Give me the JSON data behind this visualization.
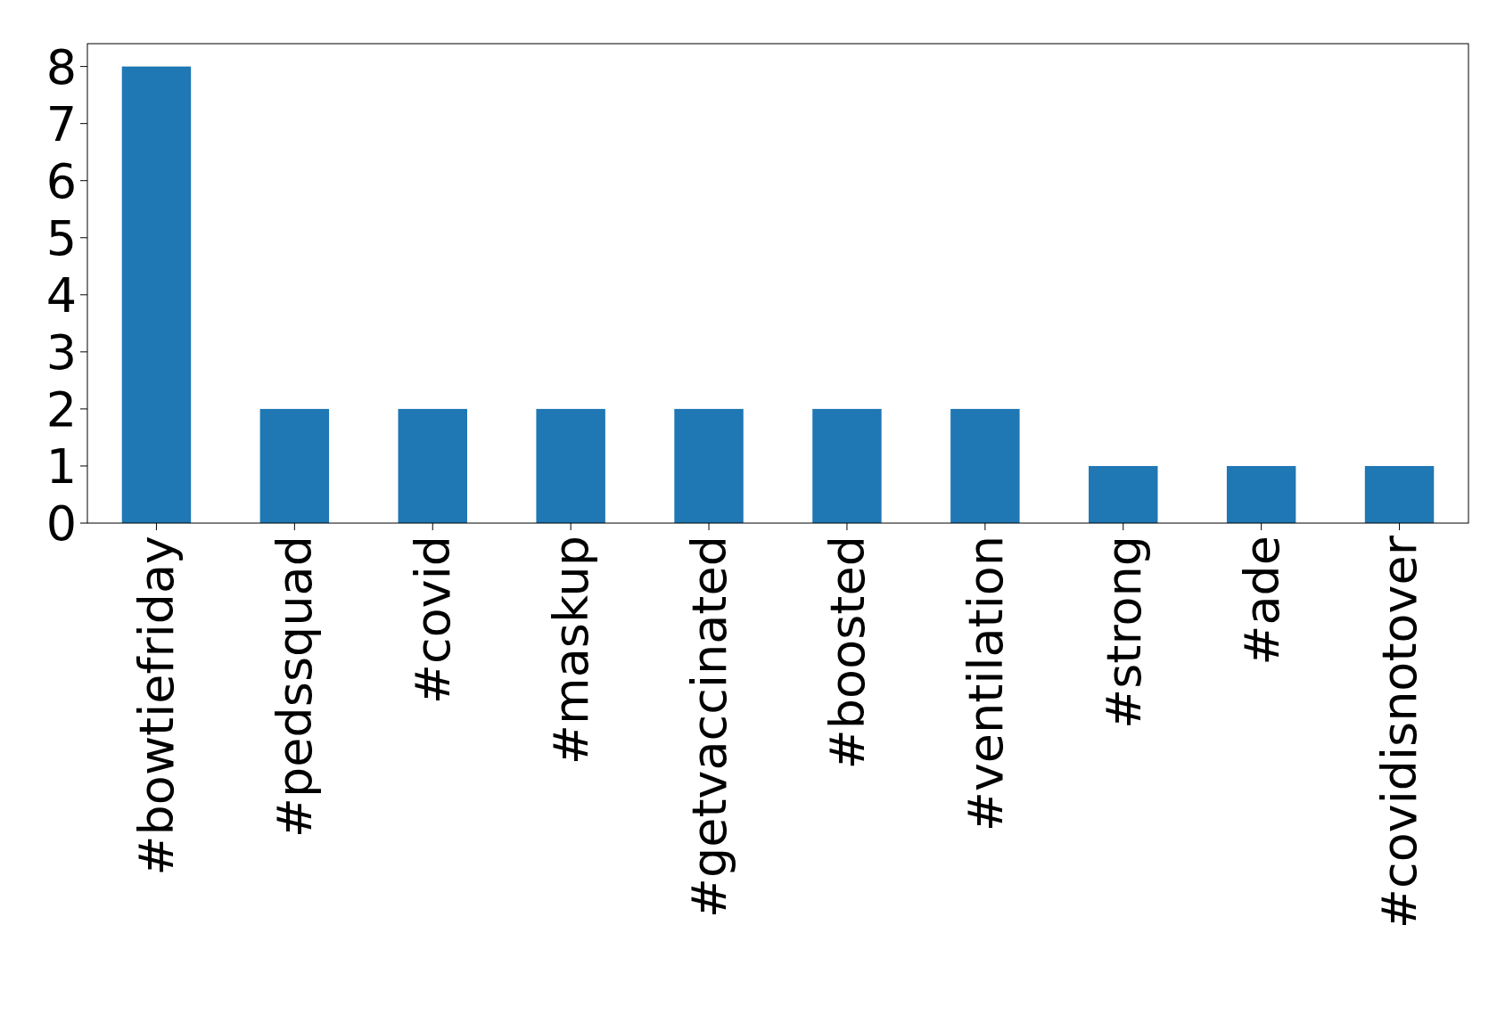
{
  "chart_data": {
    "type": "bar",
    "categories": [
      "#bowtiefriday",
      "#pedssquad",
      "#covid",
      "#maskup",
      "#getvaccinated",
      "#boosted",
      "#ventilation",
      "#strong",
      "#ade",
      "#covidisnotover"
    ],
    "values": [
      8,
      2,
      2,
      2,
      2,
      2,
      2,
      1,
      1,
      1
    ],
    "color": "#1f77b4",
    "ylim": [
      0,
      8.4
    ],
    "yticks": [
      0,
      1,
      2,
      3,
      4,
      5,
      6,
      7,
      8
    ]
  }
}
